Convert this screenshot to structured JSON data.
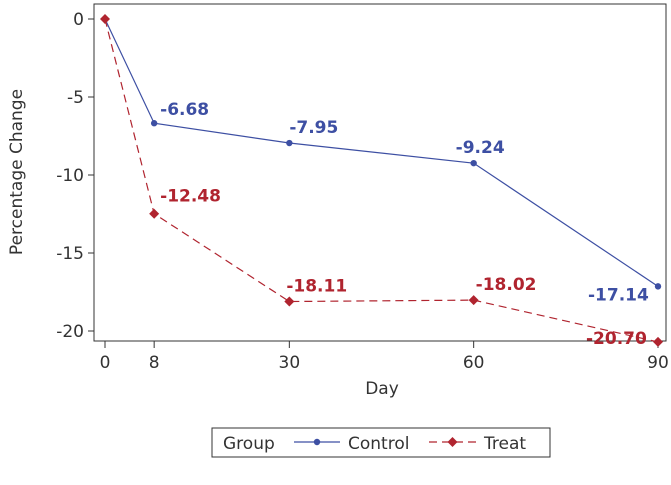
{
  "chart_data": {
    "type": "line",
    "xlabel": "Day",
    "ylabel": "Percentage Change",
    "x": [
      0,
      8,
      30,
      60,
      90
    ],
    "xticks": [
      "0",
      "8",
      "30",
      "60",
      "90"
    ],
    "yticks": [
      "0",
      "-5",
      "-10",
      "-15",
      "-20"
    ],
    "xlim": [
      0,
      90
    ],
    "ylim": [
      -21,
      0
    ],
    "grid": false,
    "legend_position": "bottom",
    "legend_title": "Group",
    "series": [
      {
        "name": "Control",
        "values": [
          0,
          -6.68,
          -7.95,
          -9.24,
          -17.14
        ],
        "labels": [
          "",
          "-6.68",
          "-7.95",
          "-9.24",
          "-17.14"
        ],
        "color": "#3d4fa3",
        "marker": "circle",
        "dash": "solid"
      },
      {
        "name": "Treat",
        "values": [
          0,
          -12.48,
          -18.11,
          -18.02,
          -20.7
        ],
        "labels": [
          "",
          "-12.48",
          "-18.11",
          "-18.02",
          "-20.70"
        ],
        "color": "#b0242f",
        "marker": "diamond",
        "dash": "dashed"
      }
    ]
  }
}
